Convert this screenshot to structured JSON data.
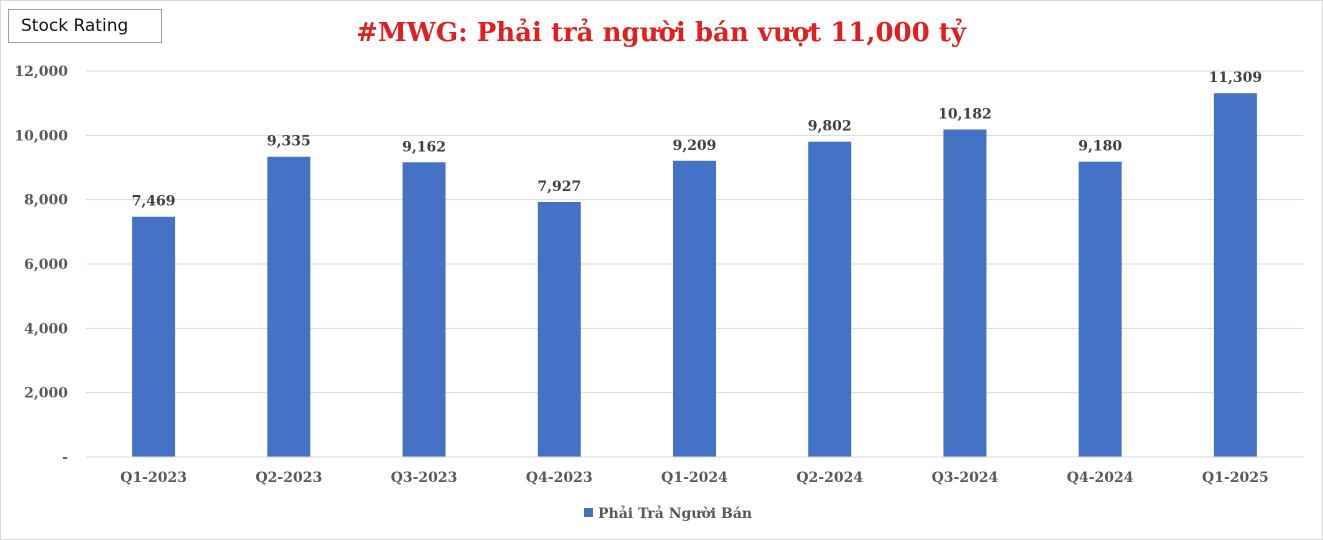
{
  "badge": {
    "label": "Stock Rating"
  },
  "chart_data": {
    "type": "bar",
    "title": "#MWG: Phải trả người bán vượt 11,000 tỷ",
    "title_color": "#e02020",
    "categories": [
      "Q1-2023",
      "Q2-2023",
      "Q3-2023",
      "Q4-2023",
      "Q1-2024",
      "Q2-2024",
      "Q3-2024",
      "Q4-2024",
      "Q1-2025"
    ],
    "series": [
      {
        "name": "Phải Trả Người Bán",
        "color": "#4472c4",
        "values": [
          7469,
          9335,
          9162,
          7927,
          9209,
          9802,
          10182,
          9180,
          11309
        ],
        "data_labels": [
          "7,469",
          "9,335",
          "9,162",
          "7,927",
          "9,209",
          "9,802",
          "10,182",
          "9,180",
          "11,309"
        ]
      }
    ],
    "ylim": [
      0,
      12000
    ],
    "yticks": [
      0,
      2000,
      4000,
      6000,
      8000,
      10000,
      12000
    ],
    "ytick_labels": [
      "-",
      "2,000",
      "4,000",
      "6,000",
      "8,000",
      "10,000",
      "12,000"
    ],
    "xlabel": "",
    "ylabel": "",
    "grid": true,
    "legend_position": "bottom"
  }
}
